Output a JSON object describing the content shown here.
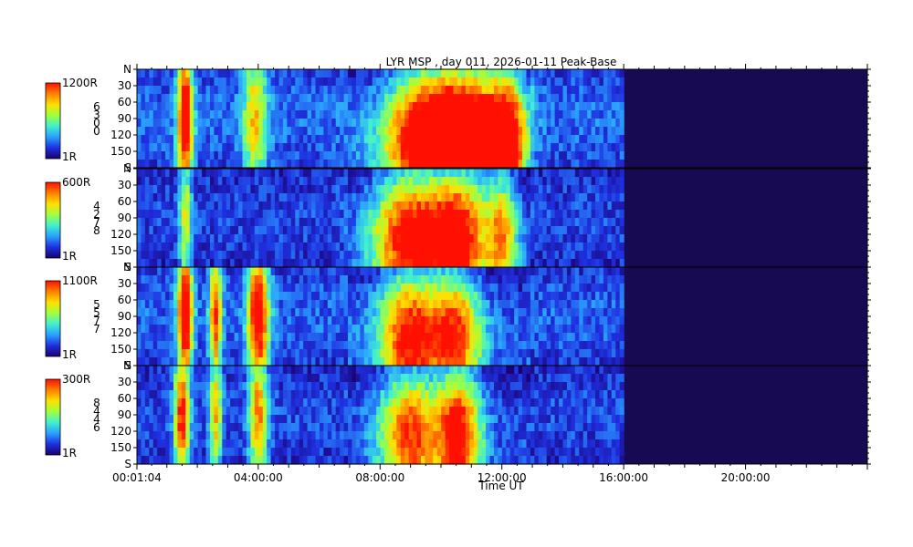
{
  "chart_data": {
    "type": "heatmap",
    "title": "LYR MSP , day 011, 2026-01-11 Peak-Base",
    "xlabel": "Time UT",
    "x_ticks": [
      "00:01:04",
      "04:00:00",
      "08:00:00",
      "12:00:00",
      "16:00:00",
      "20:00:00"
    ],
    "x_range_hours": [
      0.018,
      24
    ],
    "y_range_deg": [
      0,
      180
    ],
    "y_ticks": [
      "N",
      "30",
      "60",
      "90",
      "120",
      "150",
      "S"
    ],
    "data_end_hours": 16,
    "colormap": [
      "#1a0070",
      "#1f30e0",
      "#2aa0ff",
      "#40f0d0",
      "#a0ff40",
      "#ffe000",
      "#ff8000",
      "#ff1000"
    ],
    "panels": [
      {
        "scale_max": "1200R",
        "scale_min": "1R",
        "scale_digits": [
          "6",
          "3",
          "0",
          "0"
        ],
        "intensity": 1.0,
        "bands": [
          [
            1.6,
            0.25,
            1.0
          ],
          [
            3.9,
            0.4,
            0.55
          ],
          [
            9.5,
            1.3,
            1.0
          ],
          [
            11.0,
            1.1,
            1.0
          ],
          [
            12.2,
            0.6,
            0.8
          ]
        ]
      },
      {
        "scale_max": "600R",
        "scale_min": "1R",
        "scale_digits": [
          "4",
          "2",
          "7",
          "8"
        ],
        "intensity": 0.45,
        "bands": [
          [
            1.6,
            0.2,
            0.5
          ],
          [
            9.0,
            1.2,
            0.9
          ],
          [
            10.6,
            0.9,
            0.85
          ],
          [
            12.0,
            0.5,
            0.6
          ]
        ]
      },
      {
        "scale_max": "1100R",
        "scale_min": "1R",
        "scale_digits": [
          "5",
          "5",
          "7",
          "7"
        ],
        "intensity": 0.85,
        "bands": [
          [
            1.6,
            0.25,
            1.0
          ],
          [
            2.6,
            0.2,
            0.75
          ],
          [
            4.0,
            0.35,
            0.95
          ],
          [
            9.0,
            1.0,
            0.8
          ],
          [
            10.5,
            0.8,
            0.7
          ]
        ]
      },
      {
        "scale_max": "300R",
        "scale_min": "1R",
        "scale_digits": [
          "8",
          "4",
          "4",
          "6"
        ],
        "intensity": 0.5,
        "bands": [
          [
            1.5,
            0.25,
            0.85
          ],
          [
            2.6,
            0.2,
            0.6
          ],
          [
            4.0,
            0.3,
            0.7
          ],
          [
            9.0,
            1.0,
            0.75
          ],
          [
            10.6,
            0.7,
            0.85
          ]
        ]
      }
    ]
  }
}
